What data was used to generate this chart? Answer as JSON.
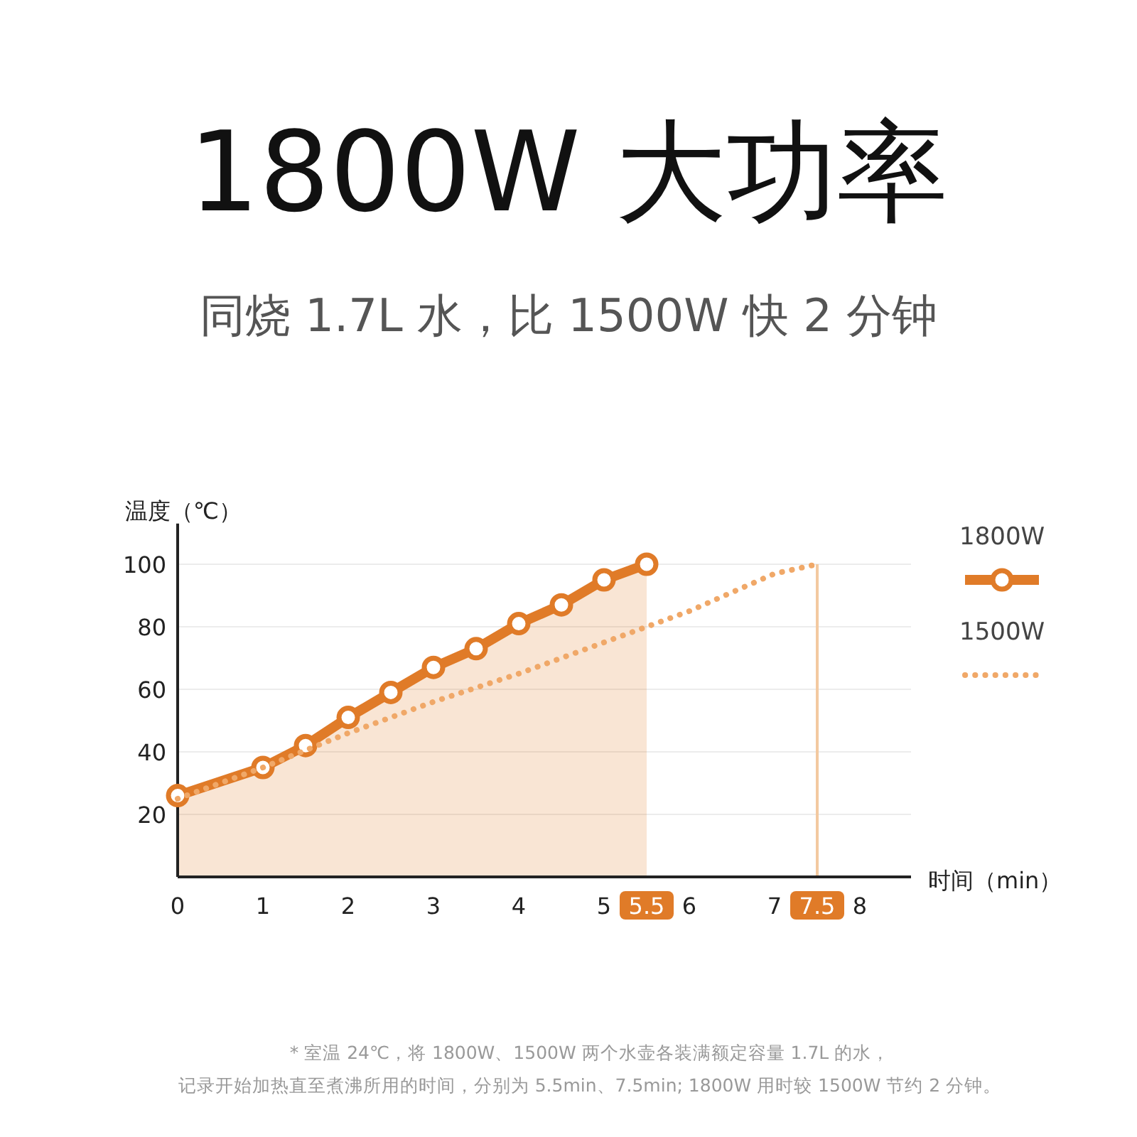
{
  "chart_data": {
    "type": "line",
    "title": "1800W 大功率",
    "subtitle": "同烧 1.7L 水，比 1500W 快 2 分钟",
    "xlabel": "时间（min）",
    "ylabel": "温度（℃）",
    "xlim": [
      0,
      8.6
    ],
    "xticks": [
      0,
      1,
      2,
      3,
      4,
      5,
      5.5,
      6,
      7,
      7.5,
      8
    ],
    "ylim": [
      0,
      113
    ],
    "yticks": [
      20,
      40,
      60,
      80,
      100
    ],
    "grid": "y",
    "legend": "right",
    "series": [
      {
        "name": "1800W",
        "type": "area",
        "color": "#e07b28",
        "marker": "circle",
        "line_style": "solid",
        "x": [
          0,
          1,
          1.5,
          2,
          2.5,
          3,
          3.5,
          4,
          4.5,
          5,
          5.5
        ],
        "values": [
          26,
          35,
          42,
          51,
          59,
          67,
          73,
          81,
          87,
          95,
          100
        ]
      },
      {
        "name": "1500W",
        "color": "#f0a868",
        "marker": "none",
        "line_style": "dotted",
        "x": [
          0,
          1,
          2,
          3,
          4,
          5,
          5.5,
          6,
          7,
          7.5
        ],
        "values": [
          25,
          35,
          46,
          56,
          65,
          75,
          80,
          85,
          97,
          100
        ]
      }
    ],
    "ref_lines": [
      {
        "axis": "x",
        "value": 7.5,
        "color": "#f3c9a0"
      }
    ],
    "annotations": [
      "* 室温 24℃，将 1800W、1500W 两个水壶各装满额定容量 1.7L 的水，",
      "记录开始加热直至煮沸所用的时间，分别为 5.5min、7.5min; 1800W 用时较 1500W 节约 2 分钟。"
    ]
  }
}
